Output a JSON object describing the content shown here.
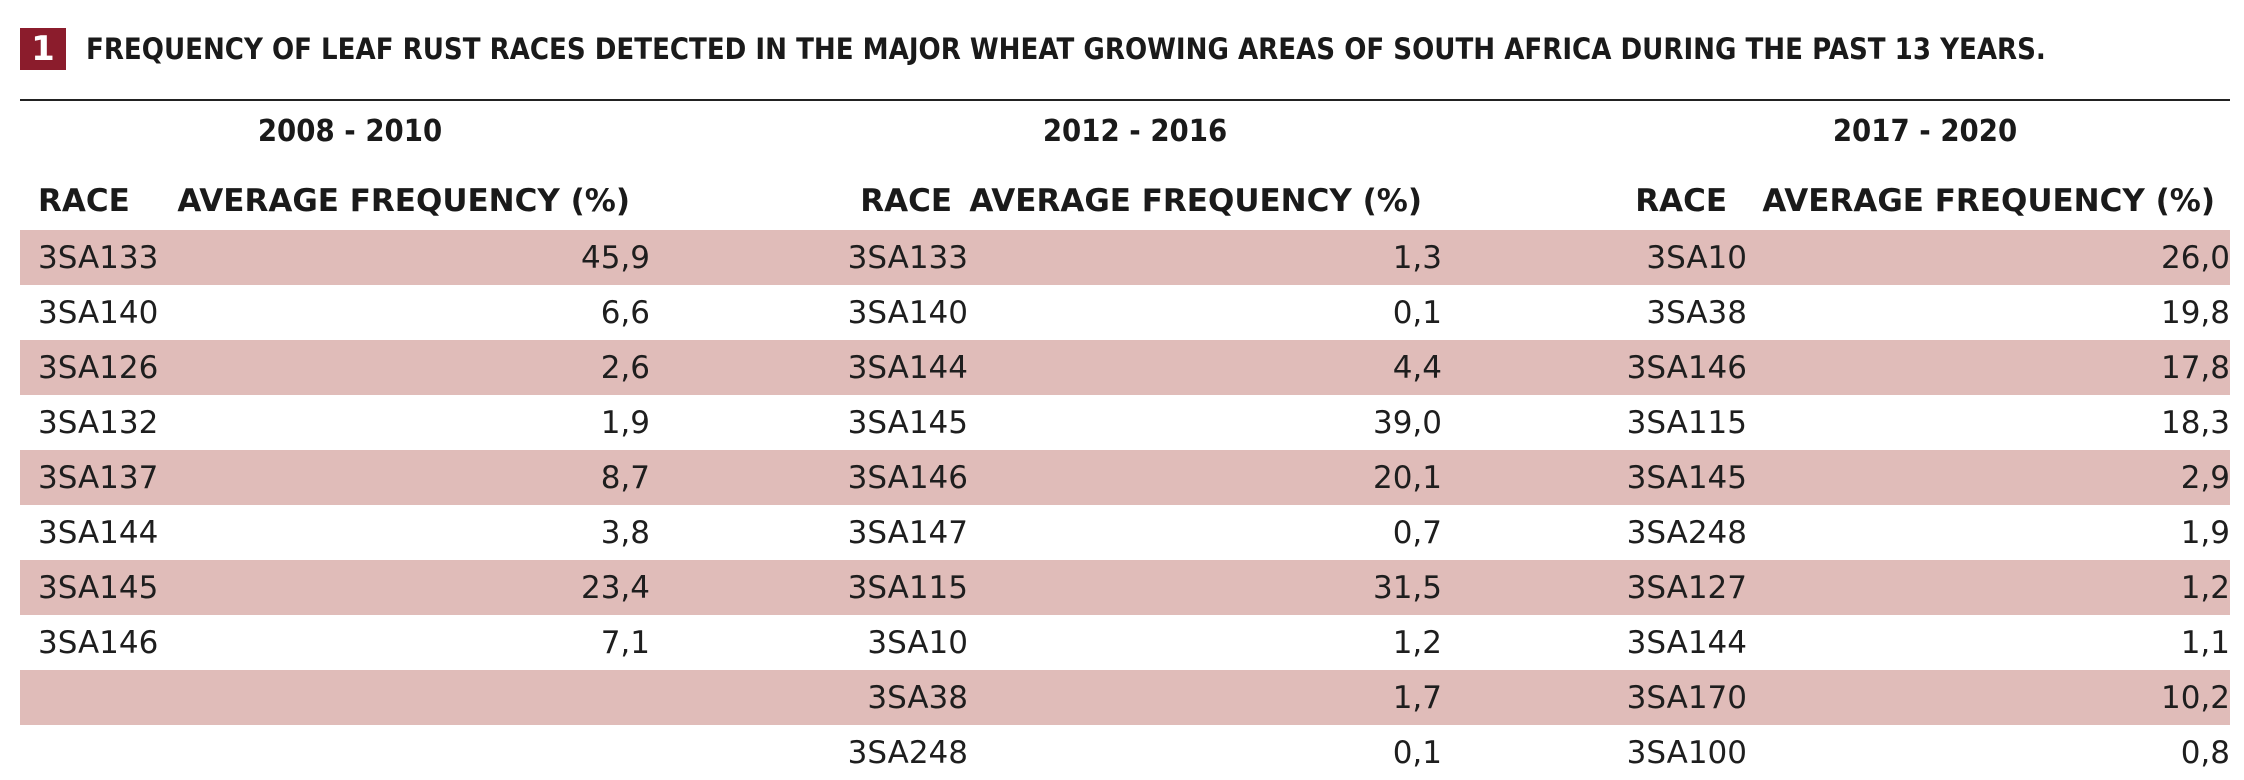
{
  "header": {
    "number": "1",
    "title": "FREQUENCY OF LEAF RUST RACES DETECTED IN THE MAJOR WHEAT GROWING AREAS OF SOUTH AFRICA DURING THE PAST 13 YEARS."
  },
  "colors": {
    "badge": "#8b1c2c",
    "row_shade": "#e0bcb9"
  },
  "periods": [
    "2008 - 2010",
    "2012 - 2016",
    "2017 - 2020"
  ],
  "columns": {
    "race": "RACE",
    "frequency": "AVERAGE FREQUENCY (%)"
  },
  "rows": [
    {
      "a_race": "3SA133",
      "a_freq": "45,9",
      "b_race": "3SA133",
      "b_freq": "1,3",
      "c_race": "3SA10",
      "c_freq": "26,0"
    },
    {
      "a_race": "3SA140",
      "a_freq": "6,6",
      "b_race": "3SA140",
      "b_freq": "0,1",
      "c_race": "3SA38",
      "c_freq": "19,8"
    },
    {
      "a_race": "3SA126",
      "a_freq": "2,6",
      "b_race": "3SA144",
      "b_freq": "4,4",
      "c_race": "3SA146",
      "c_freq": "17,8"
    },
    {
      "a_race": "3SA132",
      "a_freq": "1,9",
      "b_race": "3SA145",
      "b_freq": "39,0",
      "c_race": "3SA115",
      "c_freq": "18,3"
    },
    {
      "a_race": "3SA137",
      "a_freq": "8,7",
      "b_race": "3SA146",
      "b_freq": "20,1",
      "c_race": "3SA145",
      "c_freq": "2,9"
    },
    {
      "a_race": "3SA144",
      "a_freq": "3,8",
      "b_race": "3SA147",
      "b_freq": "0,7",
      "c_race": "3SA248",
      "c_freq": "1,9"
    },
    {
      "a_race": "3SA145",
      "a_freq": "23,4",
      "b_race": "3SA115",
      "b_freq": "31,5",
      "c_race": "3SA127",
      "c_freq": "1,2"
    },
    {
      "a_race": "3SA146",
      "a_freq": "7,1",
      "b_race": "3SA10",
      "b_freq": "1,2",
      "c_race": "3SA144",
      "c_freq": "1,1"
    },
    {
      "a_race": "",
      "a_freq": "",
      "b_race": "3SA38",
      "b_freq": "1,7",
      "c_race": "3SA170",
      "c_freq": "10,2"
    },
    {
      "a_race": "",
      "a_freq": "",
      "b_race": "3SA248",
      "b_freq": "0,1",
      "c_race": "3SA100",
      "c_freq": "0,8"
    }
  ]
}
